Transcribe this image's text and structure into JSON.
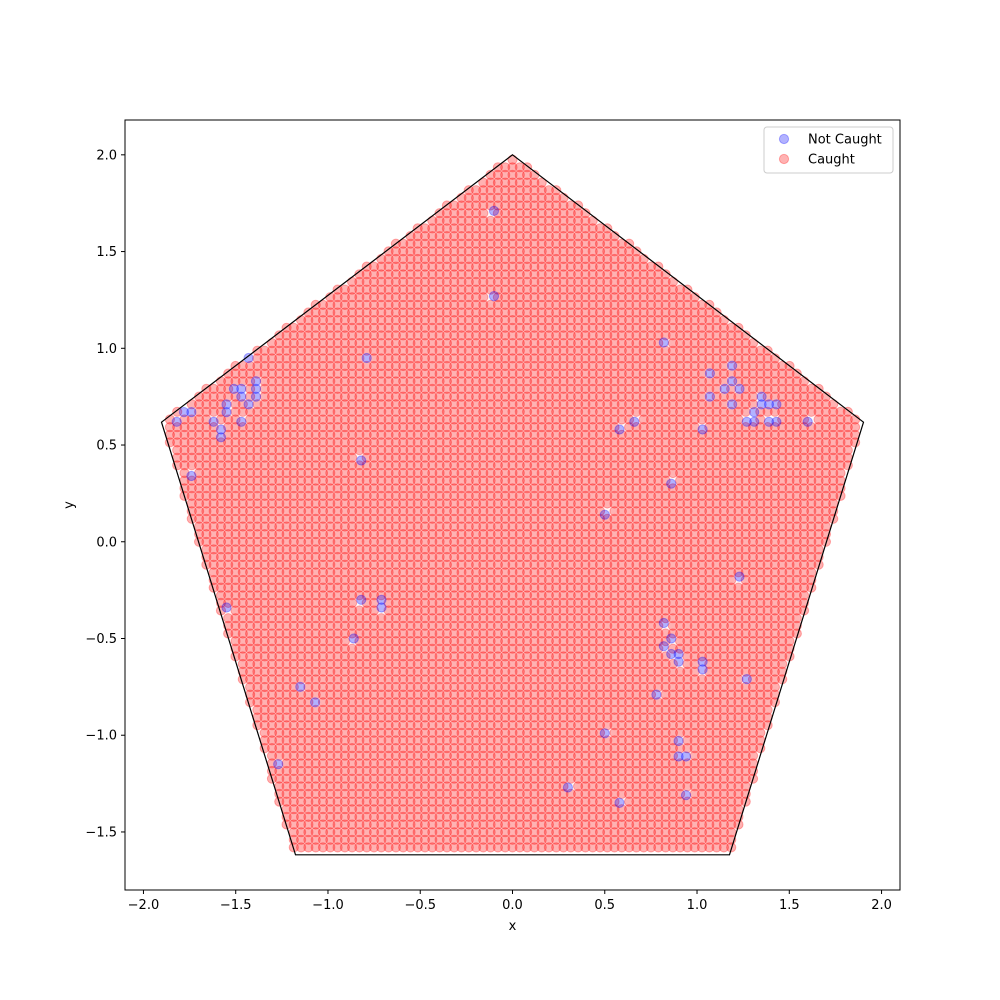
{
  "chart_data": {
    "type": "scatter",
    "title": "",
    "xlabel": "x",
    "ylabel": "y",
    "xlim": [
      -2.1,
      2.1
    ],
    "ylim": [
      -1.8,
      2.18
    ],
    "xticks": [
      -2.0,
      -1.5,
      -1.0,
      -0.5,
      0.0,
      0.5,
      1.0,
      1.5,
      2.0
    ],
    "xtick_labels": [
      "−2.0",
      "−1.5",
      "−1.0",
      "−0.5",
      "0.0",
      "0.5",
      "1.0",
      "1.5",
      "2.0"
    ],
    "yticks": [
      -1.5,
      -1.0,
      -0.5,
      0.0,
      0.5,
      1.0,
      1.5,
      2.0
    ],
    "ytick_labels": [
      "−1.5",
      "−1.0",
      "−0.5",
      "0.0",
      "0.5",
      "1.0",
      "1.5",
      "2.0"
    ],
    "grid": false,
    "legend_position": "top-right",
    "boundary": {
      "shape": "regular pentagon",
      "vertices": [
        [
          0.0,
          2.0
        ],
        [
          1.902,
          0.618
        ],
        [
          1.176,
          -1.618
        ],
        [
          -1.176,
          -1.618
        ],
        [
          -1.902,
          0.618
        ]
      ],
      "color": "#000000"
    },
    "series": [
      {
        "name": "Not Caught",
        "color": "#0000ff",
        "points": [
          [
            -0.1,
            1.71
          ],
          [
            -0.1,
            1.27
          ],
          [
            0.82,
            1.03
          ],
          [
            -1.43,
            0.95
          ],
          [
            -0.79,
            0.95
          ],
          [
            1.19,
            0.91
          ],
          [
            1.07,
            0.87
          ],
          [
            -1.39,
            0.83
          ],
          [
            1.19,
            0.83
          ],
          [
            -1.51,
            0.79
          ],
          [
            -1.47,
            0.79
          ],
          [
            -1.39,
            0.79
          ],
          [
            1.15,
            0.79
          ],
          [
            1.23,
            0.79
          ],
          [
            -1.47,
            0.75
          ],
          [
            -1.39,
            0.75
          ],
          [
            1.07,
            0.75
          ],
          [
            1.35,
            0.75
          ],
          [
            -1.55,
            0.71
          ],
          [
            -1.43,
            0.71
          ],
          [
            1.19,
            0.71
          ],
          [
            1.35,
            0.71
          ],
          [
            1.39,
            0.71
          ],
          [
            1.43,
            0.71
          ],
          [
            -1.78,
            0.67
          ],
          [
            -1.74,
            0.67
          ],
          [
            -1.55,
            0.67
          ],
          [
            1.31,
            0.67
          ],
          [
            -1.82,
            0.62
          ],
          [
            -1.62,
            0.62
          ],
          [
            -1.47,
            0.62
          ],
          [
            0.66,
            0.62
          ],
          [
            1.27,
            0.62
          ],
          [
            1.31,
            0.62
          ],
          [
            1.39,
            0.62
          ],
          [
            1.43,
            0.62
          ],
          [
            1.6,
            0.62
          ],
          [
            -1.58,
            0.58
          ],
          [
            0.58,
            0.58
          ],
          [
            1.03,
            0.58
          ],
          [
            -1.58,
            0.54
          ],
          [
            -0.82,
            0.42
          ],
          [
            -1.74,
            0.34
          ],
          [
            0.86,
            0.3
          ],
          [
            0.5,
            0.14
          ],
          [
            1.23,
            -0.18
          ],
          [
            -0.82,
            -0.3
          ],
          [
            -0.71,
            -0.3
          ],
          [
            -1.55,
            -0.34
          ],
          [
            -0.71,
            -0.34
          ],
          [
            0.82,
            -0.42
          ],
          [
            -0.86,
            -0.5
          ],
          [
            0.86,
            -0.5
          ],
          [
            0.82,
            -0.54
          ],
          [
            0.86,
            -0.58
          ],
          [
            0.9,
            -0.58
          ],
          [
            0.9,
            -0.62
          ],
          [
            1.03,
            -0.62
          ],
          [
            1.03,
            -0.66
          ],
          [
            1.27,
            -0.71
          ],
          [
            -1.15,
            -0.75
          ],
          [
            0.78,
            -0.79
          ],
          [
            -1.07,
            -0.83
          ],
          [
            0.5,
            -0.99
          ],
          [
            0.9,
            -1.03
          ],
          [
            0.9,
            -1.11
          ],
          [
            0.94,
            -1.11
          ],
          [
            -1.27,
            -1.15
          ],
          [
            0.3,
            -1.27
          ],
          [
            0.94,
            -1.31
          ],
          [
            0.58,
            -1.35
          ]
        ]
      },
      {
        "name": "Caught",
        "color": "#ff0000",
        "grid_step": 0.0395,
        "fill": "all grid points inside the pentagon except the Not Caught points"
      }
    ]
  }
}
